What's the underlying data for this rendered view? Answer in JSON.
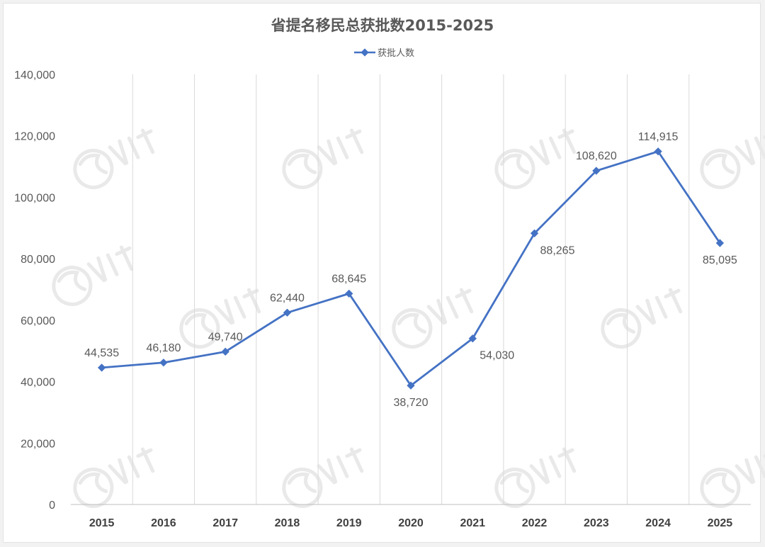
{
  "chart_data": {
    "type": "line",
    "title": "省提名移民总获批数2015-2025",
    "categories": [
      "2015",
      "2016",
      "2017",
      "2018",
      "2019",
      "2020",
      "2021",
      "2022",
      "2023",
      "2024",
      "2025"
    ],
    "series": [
      {
        "name": "获批人数",
        "values": [
          44535,
          46180,
          49740,
          62440,
          68645,
          38720,
          54030,
          88265,
          108620,
          114915,
          85095
        ],
        "value_labels": [
          "44,535",
          "46,180",
          "49,740",
          "62,440",
          "68,645",
          "38,720",
          "54,030",
          "88,265",
          "108,620",
          "114,915",
          "85,095"
        ],
        "color": "#4472c4"
      }
    ],
    "yticks": [
      0,
      20000,
      40000,
      60000,
      80000,
      100000,
      120000,
      140000
    ],
    "ytick_labels": [
      "0",
      "20,000",
      "40,000",
      "60,000",
      "80,000",
      "100,000",
      "120,000",
      "140,000"
    ],
    "ylim": [
      0,
      140000
    ],
    "grid": "vertical",
    "legend": "top-center"
  }
}
